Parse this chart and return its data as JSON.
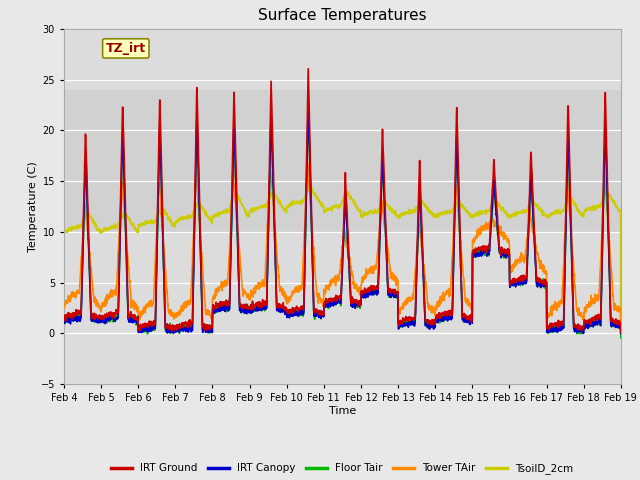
{
  "title": "Surface Temperatures",
  "xlabel": "Time",
  "ylabel": "Temperature (C)",
  "ylim": [
    -5,
    30
  ],
  "xlim": [
    0,
    15
  ],
  "x_tick_labels": [
    "Feb 4",
    "Feb 5",
    "Feb 6",
    "Feb 7",
    "Feb 8",
    "Feb 9",
    "Feb 10",
    "Feb 11",
    "Feb 12",
    "Feb 13",
    "Feb 14",
    "Feb 15",
    "Feb 16",
    "Feb 17",
    "Feb 18",
    "Feb 19"
  ],
  "x_tick_positions": [
    0,
    1,
    2,
    3,
    4,
    5,
    6,
    7,
    8,
    9,
    10,
    11,
    12,
    13,
    14,
    15
  ],
  "yticks": [
    -5,
    0,
    5,
    10,
    15,
    20,
    25,
    30
  ],
  "shade_y_min": 10,
  "shade_y_max": 24,
  "annotation_text": "TZ_irt",
  "series": {
    "IRT Ground": {
      "color": "#cc0000",
      "linewidth": 1.2
    },
    "IRT Canopy": {
      "color": "#0000cc",
      "linewidth": 1.2
    },
    "Floor Tair": {
      "color": "#00bb00",
      "linewidth": 1.2
    },
    "Tower TAir": {
      "color": "#ff8800",
      "linewidth": 1.2
    },
    "TsoilD_2cm": {
      "color": "#cccc00",
      "linewidth": 1.2
    }
  },
  "fig_bg": "#e8e8e8",
  "plot_bg": "#dcdcdc",
  "title_fontsize": 11,
  "tick_fontsize": 7,
  "label_fontsize": 8
}
